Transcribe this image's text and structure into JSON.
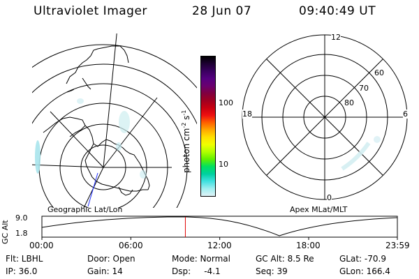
{
  "header": {
    "title": "Ultraviolet Imager",
    "date": "28 Jun 07",
    "time": "09:40:49 UT"
  },
  "left_panel": {
    "caption": "Geographic Lat/Lon"
  },
  "colorbar": {
    "label": "photon cm",
    "label_sup": "-2",
    "label_mid": "s",
    "label_sup2": "-1",
    "ticks": [
      "100",
      "10"
    ],
    "colors": [
      "#000000",
      "#1e0033",
      "#3a0060",
      "#550080",
      "#6a0070",
      "#800040",
      "#a00020",
      "#c80010",
      "#ee1010",
      "#ff6000",
      "#ffa800",
      "#ffe000",
      "#f0ff00",
      "#b0ff00",
      "#60f000",
      "#00e060",
      "#00d0a0",
      "#40e0e0",
      "#a0eef0",
      "#e0f4f8"
    ]
  },
  "right_panel": {
    "caption": "Apex MLat/MLT",
    "mlt_labels": [
      "12",
      "18",
      "6",
      "0"
    ],
    "mlat_labels": [
      "60",
      "70",
      "80"
    ]
  },
  "timeline": {
    "axis_label": "GC Alt",
    "y_ticks": [
      "9.0",
      "1.8"
    ],
    "x_ticks": [
      "00:00",
      "06:00",
      "12:00",
      "18:00",
      "23:59"
    ],
    "marker_time_hours": 9.68
  },
  "info": {
    "flt": "Flt: LBHL",
    "ip": "IP: 36.0",
    "door": "Door: Open",
    "gain": "Gain: 14",
    "mode": "Mode: Normal",
    "dsp": "Dsp:     -4.1",
    "gcalt": "GC Alt: 8.5 Re",
    "seq": "Seq: 39",
    "glat": "GLat: -70.9",
    "glon": "GLon: 166.4"
  }
}
